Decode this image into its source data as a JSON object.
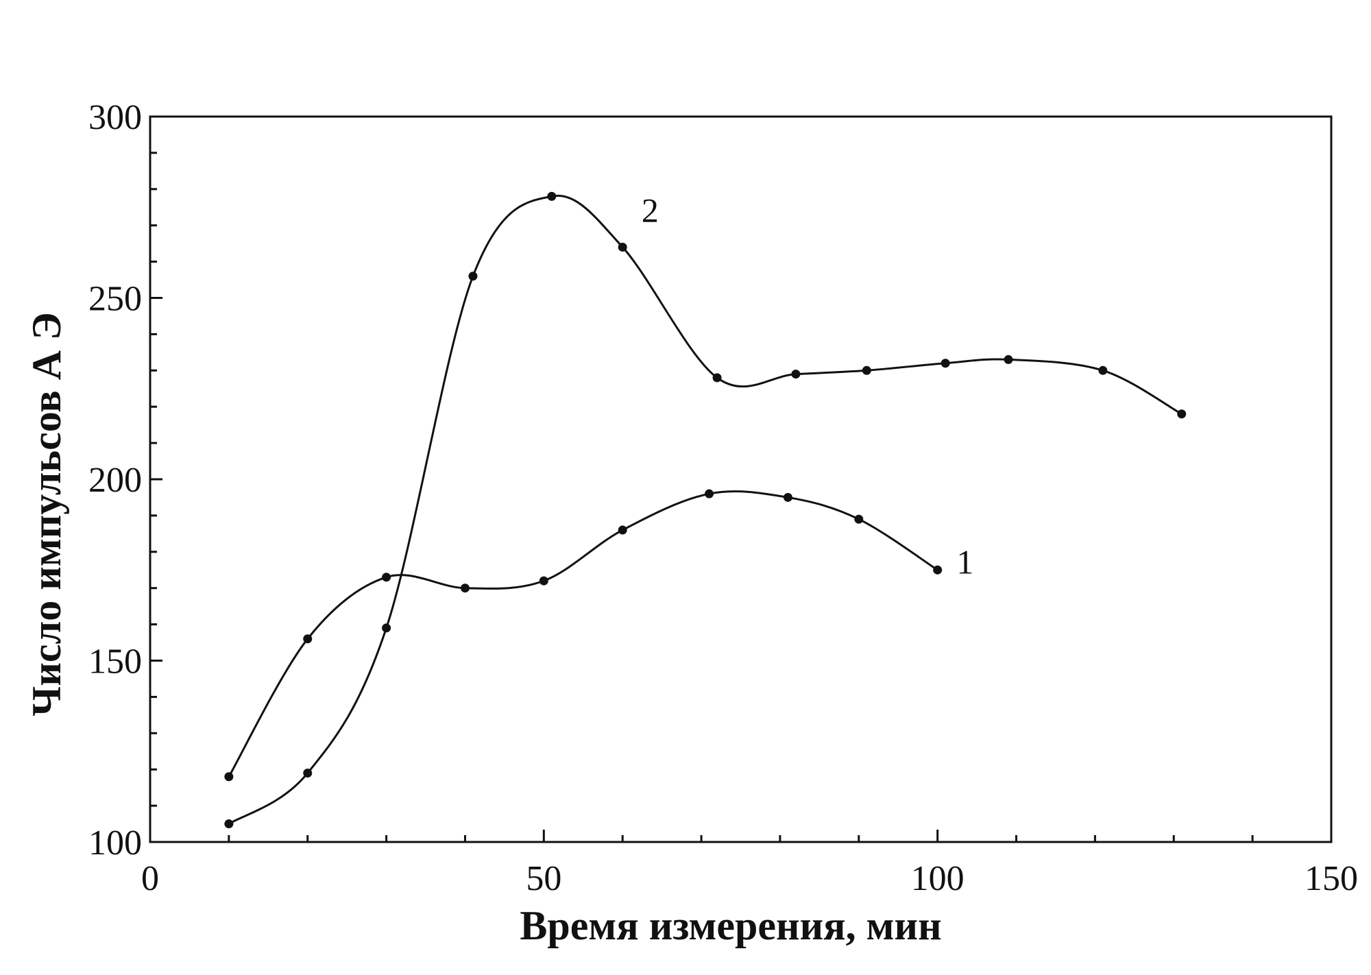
{
  "chart_data": {
    "type": "line",
    "title": "",
    "xlabel": "Время измерения, мин",
    "ylabel": "Число импульсов  А Э",
    "xlim": [
      0,
      150
    ],
    "ylim": [
      100,
      300
    ],
    "xticks": [
      0,
      50,
      100,
      150
    ],
    "yticks": [
      100,
      150,
      200,
      250,
      300
    ],
    "x_tick_labels": [
      "0",
      "50",
      "100",
      "150"
    ],
    "y_tick_labels": [
      "100",
      "150",
      "200",
      "250",
      "300"
    ],
    "grid": false,
    "legend": "none",
    "series": [
      {
        "name": "1",
        "x": [
          10,
          20,
          30,
          40,
          50,
          60,
          71,
          81,
          90,
          100
        ],
        "y": [
          118,
          156,
          173,
          170,
          172,
          186,
          196,
          195,
          189,
          175
        ]
      },
      {
        "name": "2",
        "x": [
          10,
          20,
          30,
          41,
          51,
          60,
          72,
          82,
          91,
          101,
          109,
          121,
          131
        ],
        "y": [
          105,
          119,
          159,
          256,
          278,
          264,
          228,
          229,
          230,
          232,
          233,
          230,
          218
        ]
      }
    ]
  }
}
